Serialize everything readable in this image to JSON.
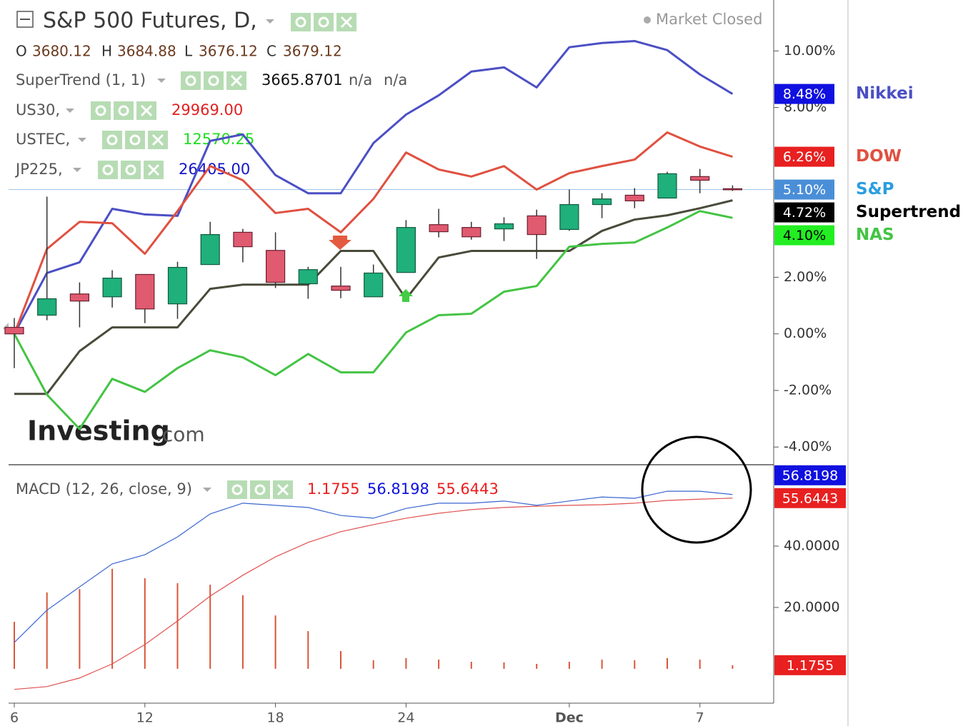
{
  "chart_data": [
    {
      "type": "candlestick",
      "title": "S&P 500 Futures, D,",
      "status": "Market Closed",
      "ohlc": [
        [
          "O",
          "3680.12"
        ],
        [
          "H",
          "3684.88"
        ],
        [
          "L",
          "3676.12"
        ],
        [
          "C",
          "3679.12"
        ]
      ],
      "indicators": [
        {
          "name": "SuperTrend (1, 1)",
          "value": "3665.8701",
          "extra": [
            "n/a",
            "n/a"
          ],
          "color": "#111111"
        },
        {
          "name": "US30,",
          "value": "29969.00",
          "color": "#e02020"
        },
        {
          "name": "USTEC,",
          "value": "12570.25",
          "color": "#22dd22"
        },
        {
          "name": "JP225,",
          "value": "26405.00",
          "color": "#1414c8"
        }
      ],
      "watermark": [
        "Investing",
        ".com"
      ],
      "categories": [
        "6",
        null,
        null,
        null,
        "12",
        null,
        null,
        null,
        "18",
        null,
        null,
        null,
        "24",
        null,
        null,
        null,
        null,
        "Dec",
        null,
        null,
        null,
        "7",
        null
      ],
      "ylim": [
        -4.6,
        11.8
      ],
      "yticks": [
        {
          "value": -4,
          "label": "-4.00%"
        },
        {
          "value": -2,
          "label": "-2.00%"
        },
        {
          "value": 0,
          "label": "0.00%"
        },
        {
          "value": 2,
          "label": "2.00%"
        },
        {
          "value": 8,
          "label": "8.00%"
        },
        {
          "value": 10,
          "label": "10.00%"
        }
      ],
      "candles": {
        "name": "S&P",
        "color": "#2a9ee0",
        "label_color": "#4a8ed8",
        "up_color": "#1fb07c",
        "down_color": "#e05a70",
        "open": [
          0.23,
          0.66,
          1.41,
          1.31,
          2.1,
          1.06,
          2.45,
          3.59,
          2.95,
          1.77,
          1.69,
          1.31,
          2.17,
          3.86,
          3.76,
          3.71,
          4.17,
          3.69,
          4.57,
          4.9,
          4.8,
          5.56,
          5.13
        ],
        "high": [
          0.56,
          4.85,
          1.82,
          2.25,
          2.1,
          2.55,
          3.96,
          3.71,
          3.59,
          2.37,
          2.37,
          2.45,
          4.02,
          4.42,
          3.96,
          4.12,
          4.39,
          5.1,
          4.97,
          5.15,
          5.73,
          5.83,
          5.25
        ],
        "low": [
          -1.21,
          0.48,
          0.23,
          0.93,
          0.38,
          0.53,
          2.45,
          2.53,
          1.62,
          1.24,
          1.26,
          1.31,
          2.17,
          3.41,
          3.33,
          3.28,
          2.65,
          3.64,
          4.09,
          4.44,
          4.8,
          4.97,
          5.05
        ],
        "close": [
          0.0,
          1.24,
          1.16,
          1.97,
          0.88,
          2.35,
          3.51,
          3.08,
          1.82,
          2.27,
          1.54,
          2.15,
          3.76,
          3.61,
          3.43,
          3.89,
          3.51,
          4.57,
          4.77,
          4.7,
          5.66,
          5.43,
          5.1
        ],
        "last_label": "5.10%"
      },
      "series": [
        {
          "name": "Nikkei",
          "color": "#4b4fc4",
          "label_color": "#1010e0",
          "values": [
            0,
            2.15,
            2.53,
            4.42,
            4.22,
            4.17,
            6.82,
            7.05,
            5.61,
            4.97,
            4.97,
            6.74,
            7.75,
            8.43,
            9.27,
            9.42,
            8.71,
            10.13,
            10.28,
            10.35,
            10.03,
            9.17,
            8.48
          ],
          "last_label": "8.48%"
        },
        {
          "name": "DOW",
          "color": "#e05040",
          "label_color": "#e82020",
          "values": [
            0,
            3.0,
            3.96,
            3.91,
            2.83,
            4.34,
            5.93,
            5.43,
            4.27,
            4.42,
            3.59,
            4.77,
            6.41,
            5.81,
            5.56,
            5.93,
            5.1,
            5.68,
            5.93,
            6.16,
            7.12,
            6.62,
            6.26
          ],
          "last_label": "6.26%"
        },
        {
          "name": "Supertrend",
          "color": "#4a4a3a",
          "label_color": "#000000",
          "values": [
            -2.12,
            -2.12,
            -0.61,
            0.23,
            0.23,
            0.23,
            1.59,
            1.74,
            1.74,
            1.74,
            2.93,
            2.93,
            1.24,
            2.7,
            2.93,
            2.93,
            2.93,
            2.93,
            3.64,
            4.04,
            4.19,
            4.44,
            4.72
          ],
          "last_label": "4.72%"
        },
        {
          "name": "NAS",
          "color": "#44c444",
          "label_color": "#22ee22",
          "values": [
            0,
            -2.15,
            -3.36,
            -1.59,
            -2.05,
            -1.21,
            -0.58,
            -0.83,
            -1.46,
            -0.71,
            -1.36,
            -1.36,
            0.05,
            0.66,
            0.71,
            1.49,
            1.69,
            3.08,
            3.18,
            3.23,
            3.76,
            4.34,
            4.1
          ],
          "last_label": "4.10%"
        }
      ]
    },
    {
      "type": "macd",
      "title": "MACD (12, 26, close, 9)",
      "ylim": [
        -11.2,
        66.3
      ],
      "yticks": [
        {
          "value": 20,
          "label": "20.0000"
        },
        {
          "value": 40,
          "label": "40.0000"
        }
      ],
      "series": [
        {
          "type": "bar",
          "color": "#d9553a",
          "label_color": "#e82020",
          "values": [
            15.3,
            24.9,
            26.0,
            32.6,
            29.5,
            27.9,
            27.4,
            24.0,
            17.4,
            12.3,
            5.8,
            2.8,
            3.5,
            3.0,
            2.3,
            2.1,
            1.6,
            2.3,
            3.0,
            2.8,
            3.5,
            3.0,
            1.1755
          ]
        },
        {
          "type": "line",
          "color": "#3a66d0",
          "label_color": "#1010e0",
          "values": [
            8.6,
            19.1,
            26.7,
            34.2,
            37.2,
            43.0,
            50.5,
            54.0,
            53.3,
            52.6,
            50.0,
            49.1,
            52.3,
            54.0,
            54.0,
            54.7,
            53.3,
            54.7,
            56.0,
            55.6,
            57.9,
            57.9,
            56.8198
          ]
        },
        {
          "type": "line",
          "color": "#e05050",
          "label_color": "#e82020",
          "values": [
            -6.7,
            -5.8,
            -3.0,
            1.6,
            7.9,
            15.6,
            23.7,
            30.5,
            36.5,
            41.2,
            44.7,
            47.0,
            49.1,
            50.7,
            51.9,
            52.6,
            53.0,
            53.3,
            53.5,
            54.0,
            54.9,
            55.3,
            55.6443
          ]
        }
      ]
    }
  ]
}
